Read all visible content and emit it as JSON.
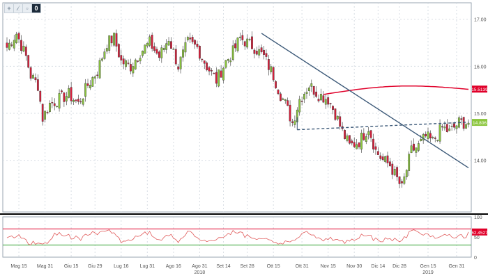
{
  "toolbar": {
    "items": [
      {
        "name": "crosshair-icon",
        "glyph": "+"
      },
      {
        "name": "draw-tool-icon",
        "glyph": "⁄"
      },
      {
        "name": "zoom-icon",
        "glyph": "▫"
      },
      {
        "name": "indicator-badge",
        "glyph": "0"
      }
    ]
  },
  "colors": {
    "bull": "#8cc63f",
    "bear": "#d81e3a",
    "ma": "#e0002a",
    "trendline": "#3b5877",
    "rsi_line": "#e05a5a",
    "rsi_upper": "#e0002a",
    "rsi_lower": "#2e9e2e",
    "grid": "#d7dde3",
    "axis": "#555555"
  },
  "chart_data": [
    {
      "type": "candlestick",
      "title": "",
      "y_ticks": [
        "17.00",
        "16.00",
        "15.00",
        "14.00"
      ],
      "y_tick_values": [
        17,
        16,
        15,
        14
      ],
      "ylim": [
        12.9,
        17.35
      ],
      "x_ticks": [
        "Mag 15",
        "Mag 31",
        "Giu 15",
        "Giu 29",
        "Lug 16",
        "Lug 31",
        "Ago 16",
        "Ago 31",
        "Set 14",
        "Set 28",
        "Ott 15",
        "Ott 31",
        "Nov 15",
        "Nov 30",
        "Dic 14",
        "Dic 28",
        "Gen 15",
        "Gen 31"
      ],
      "x_tick_index": [
        5,
        16,
        27,
        37,
        48,
        59,
        70,
        81,
        91,
        101,
        112,
        124,
        135,
        146,
        156,
        165,
        177,
        189
      ],
      "year_labels": [
        {
          "label": "2018",
          "index": 81
        },
        {
          "label": "2019",
          "index": 177
        }
      ],
      "num_bars": 195,
      "anchors": [
        [
          0,
          16.4
        ],
        [
          4,
          16.7
        ],
        [
          8,
          16.2
        ],
        [
          10,
          15.8
        ],
        [
          13,
          15.6
        ],
        [
          15,
          14.9
        ],
        [
          18,
          15.2
        ],
        [
          22,
          15.3
        ],
        [
          26,
          15.4
        ],
        [
          30,
          15.2
        ],
        [
          34,
          15.6
        ],
        [
          38,
          15.9
        ],
        [
          42,
          16.5
        ],
        [
          45,
          16.6
        ],
        [
          48,
          16.1
        ],
        [
          52,
          16.0
        ],
        [
          56,
          16.3
        ],
        [
          60,
          16.5
        ],
        [
          64,
          16.2
        ],
        [
          68,
          16.6
        ],
        [
          72,
          16.0
        ],
        [
          76,
          16.5
        ],
        [
          80,
          16.4
        ],
        [
          84,
          16.0
        ],
        [
          88,
          15.7
        ],
        [
          92,
          16.1
        ],
        [
          95,
          16.3
        ],
        [
          98,
          16.6
        ],
        [
          101,
          16.5
        ],
        [
          104,
          16.4
        ],
        [
          108,
          16.2
        ],
        [
          112,
          15.8
        ],
        [
          115,
          15.4
        ],
        [
          117,
          15.2
        ],
        [
          120,
          14.8
        ],
        [
          123,
          15.3
        ],
        [
          127,
          15.6
        ],
        [
          131,
          15.4
        ],
        [
          135,
          15.3
        ],
        [
          138,
          15.0
        ],
        [
          141,
          14.6
        ],
        [
          144,
          14.3
        ],
        [
          148,
          14.4
        ],
        [
          152,
          14.7
        ],
        [
          155,
          14.2
        ],
        [
          158,
          14.0
        ],
        [
          161,
          13.9
        ],
        [
          164,
          13.6
        ],
        [
          166,
          13.4
        ],
        [
          168,
          13.8
        ],
        [
          170,
          14.2
        ],
        [
          173,
          14.3
        ],
        [
          176,
          14.5
        ],
        [
          179,
          14.4
        ],
        [
          183,
          14.7
        ],
        [
          186,
          14.6
        ],
        [
          190,
          14.8
        ],
        [
          194,
          14.8
        ]
      ],
      "moving_average": {
        "start_index": 133,
        "start": 15.4,
        "mid": 15.5,
        "end": 15.51
      },
      "trendline": {
        "from": {
          "index": 107,
          "value": 16.7
        },
        "to": {
          "index": 194,
          "value": 13.84
        }
      },
      "support_line": {
        "from": {
          "index": 122,
          "value": 14.65
        },
        "to": {
          "index": 194,
          "value": 14.81
        }
      },
      "price_labels": [
        {
          "text": "15.5139",
          "kind": "ma",
          "value": 15.5139
        },
        {
          "text": "14.806",
          "kind": "last",
          "value": 14.806
        }
      ]
    },
    {
      "type": "line",
      "title": "",
      "y_ticks": [
        "100",
        "50",
        "0"
      ],
      "y_tick_values": [
        100,
        50,
        0
      ],
      "ylim": [
        0,
        100
      ],
      "upper_band": 70,
      "lower_band": 30,
      "value_label": "62.4527",
      "last_value": 62.45
    }
  ]
}
